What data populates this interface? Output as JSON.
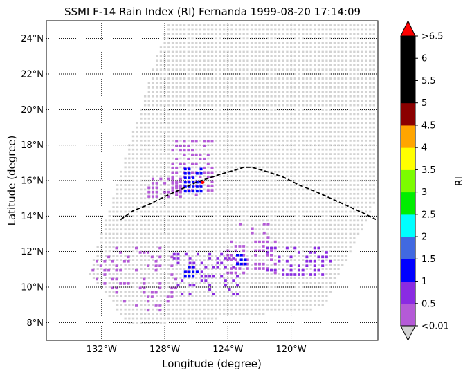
{
  "chart_data": {
    "type": "scatter",
    "title": "SSMI F-14 Rain Index (RI) Fernanda 1999-08-20 17:14:09",
    "xlabel": "Longitude (degree)",
    "ylabel": "Latitude (degree)",
    "xlim": [
      -135.5,
      -114.5
    ],
    "ylim": [
      7,
      25
    ],
    "x_ticks": [
      {
        "value": -132,
        "label": "132°W"
      },
      {
        "value": -128,
        "label": "128°W"
      },
      {
        "value": -124,
        "label": "124°W"
      },
      {
        "value": -120,
        "label": "120°W"
      }
    ],
    "y_ticks": [
      {
        "value": 8,
        "label": "8°N"
      },
      {
        "value": 10,
        "label": "10°N"
      },
      {
        "value": 12,
        "label": "12°N"
      },
      {
        "value": 14,
        "label": "14°N"
      },
      {
        "value": 16,
        "label": "16°N"
      },
      {
        "value": 18,
        "label": "18°N"
      },
      {
        "value": 20,
        "label": "20°N"
      },
      {
        "value": 22,
        "label": "22°N"
      },
      {
        "value": 24,
        "label": "24°N"
      }
    ],
    "grid": "dotted",
    "swath_color": "#d3d3d3",
    "swath_corners": [
      [
        -127.8,
        25
      ],
      [
        -114.5,
        25
      ],
      [
        -114.5,
        15.0
      ],
      [
        -118.0,
        8.8
      ],
      [
        -130.2,
        7.8
      ],
      [
        -132.8,
        10.8
      ]
    ],
    "track": {
      "style": "dashed",
      "color": "#000000",
      "points": [
        [
          -130.8,
          13.8
        ],
        [
          -130.0,
          14.3
        ],
        [
          -129.0,
          14.65
        ],
        [
          -128.0,
          15.1
        ],
        [
          -127.0,
          15.5
        ],
        [
          -126.0,
          15.9
        ],
        [
          -125.5,
          16.05
        ],
        [
          -124.5,
          16.35
        ],
        [
          -123.5,
          16.6
        ],
        [
          -123.0,
          16.75
        ],
        [
          -122.5,
          16.75
        ],
        [
          -121.5,
          16.5
        ],
        [
          -120.5,
          16.2
        ],
        [
          -119.5,
          15.75
        ],
        [
          -118.5,
          15.4
        ],
        [
          -117.5,
          15.0
        ],
        [
          -116.5,
          14.6
        ],
        [
          -115.5,
          14.2
        ],
        [
          -114.6,
          13.8
        ]
      ]
    },
    "storm_center": {
      "lon": -125.6,
      "lat": 15.9,
      "color": "#ff0000"
    },
    "colorbar": {
      "label": "RI",
      "levels": [
        {
          "label": "<0.01",
          "color": "#b45ad7"
        },
        {
          "label": "0.5",
          "color": "#8a2be2"
        },
        {
          "label": "1",
          "color": "#0000ff"
        },
        {
          "label": "1.5",
          "color": "#4169e1"
        },
        {
          "label": "2",
          "color": "#00ffff"
        },
        {
          "label": "2.5",
          "color": "#00ee00"
        },
        {
          "label": "3",
          "color": "#7cfc00"
        },
        {
          "label": "3.5",
          "color": "#ffff00"
        },
        {
          "label": "4",
          "color": "#ffa500"
        },
        {
          "label": "4.5",
          "color": "#8b0000"
        },
        {
          "label": "5",
          "color": "#000000"
        },
        {
          "label": "5.5",
          "color": "#000000"
        },
        {
          "label": "6",
          "color": "#000000"
        },
        {
          "label": ">6.5",
          "color": "#ff0000"
        }
      ],
      "under_color": "#d3d3d3",
      "over_color": "#ff0000"
    },
    "rain_clusters": [
      {
        "name": "storm-core-purple",
        "lon": [
          -127.5,
          -124.9
        ],
        "lat": [
          15.2,
          18.2
        ],
        "density": 0.55,
        "color": "#b45ad7"
      },
      {
        "name": "storm-west-band",
        "lon": [
          -129.0,
          -126.9
        ],
        "lat": [
          15.1,
          16.3
        ],
        "density": 0.55,
        "color": "#b45ad7"
      },
      {
        "name": "storm-core-blue",
        "lon": [
          -126.7,
          -125.6
        ],
        "lat": [
          15.4,
          16.7
        ],
        "density": 0.85,
        "color": "#0000ff"
      },
      {
        "name": "south-band-west",
        "lon": [
          -133.3,
          -127.2
        ],
        "lat": [
          8.7,
          12.4
        ],
        "density": 0.22,
        "color": "#b45ad7"
      },
      {
        "name": "south-band-center",
        "lon": [
          -127.4,
          -123.4
        ],
        "lat": [
          9.6,
          12.0
        ],
        "density": 0.35,
        "color": "#8a2be2"
      },
      {
        "name": "south-band-east",
        "lon": [
          -124.0,
          -121.0
        ],
        "lat": [
          10.8,
          12.6
        ],
        "density": 0.4,
        "color": "#b45ad7"
      },
      {
        "name": "south-band-far-east",
        "lon": [
          -121.5,
          -117.5
        ],
        "lat": [
          10.7,
          12.2
        ],
        "density": 0.45,
        "color": "#8a2be2"
      },
      {
        "name": "center-blue-spot",
        "lon": [
          -126.7,
          -125.9
        ],
        "lat": [
          10.6,
          11.1
        ],
        "density": 0.7,
        "color": "#0000ff"
      },
      {
        "name": "east-blue-spot",
        "lon": [
          -123.4,
          -122.7
        ],
        "lat": [
          11.3,
          11.8
        ],
        "density": 0.7,
        "color": "#0000ff"
      },
      {
        "name": "mid-patch",
        "lon": [
          -123.2,
          -121.2
        ],
        "lat": [
          12.8,
          13.6
        ],
        "density": 0.2,
        "color": "#b45ad7"
      }
    ]
  }
}
